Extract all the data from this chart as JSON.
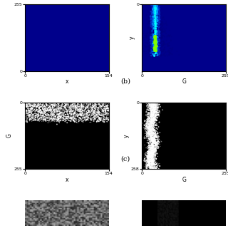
{
  "fig_width": 3.2,
  "fig_height": 3.2,
  "dpi": 100,
  "background_color": "#ffffff",
  "label_b": "(b)",
  "label_c": "(c)",
  "row1_left_bg": "#00008B",
  "row1_right_bg": "#00008B",
  "row2_left_bg": "#000000",
  "row2_right_bg": "#000000",
  "axes_label_fontsize": 5.5,
  "tick_fontsize": 4.5,
  "subplot_label_fontsize": 7,
  "panel_label_x": "x",
  "panel_label_G": "G",
  "panel_label_y": "y"
}
